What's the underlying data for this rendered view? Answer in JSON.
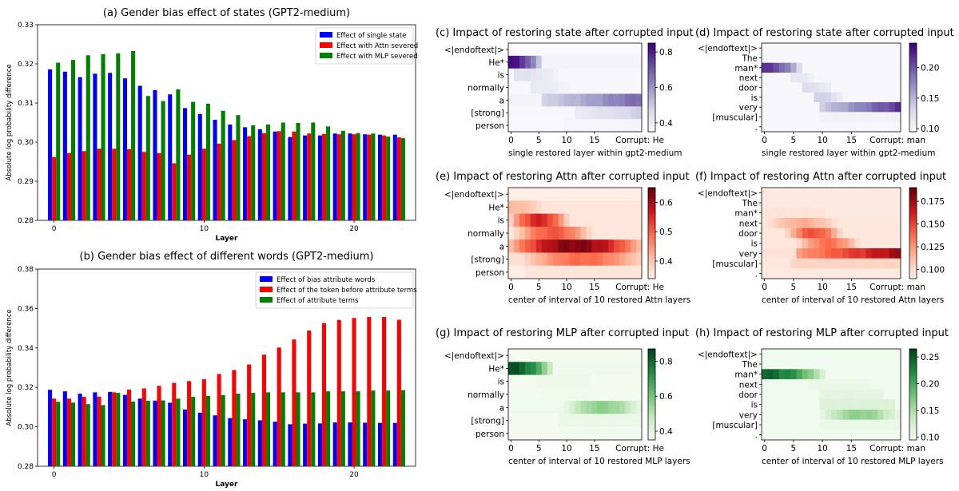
{
  "chart_data": [
    {
      "id": "a",
      "type": "bar",
      "title": "(a) Gender bias effect of states (GPT2-medium)",
      "xlabel": "Layer",
      "ylabel": "Absolute log probability difference",
      "ylim": [
        0.28,
        0.33
      ],
      "yticks": [
        "0.28",
        "0.29",
        "0.30",
        "0.31",
        "0.32",
        "0.33"
      ],
      "xticks": [
        "0",
        "10",
        "20"
      ],
      "x": [
        0,
        1,
        2,
        3,
        4,
        5,
        6,
        7,
        8,
        9,
        10,
        11,
        12,
        13,
        14,
        15,
        16,
        17,
        18,
        19,
        20,
        21,
        22,
        23
      ],
      "legend_position": "top-right",
      "series": [
        {
          "name": "Effect of single state",
          "color": "#0000ff",
          "values": [
            0.3186,
            0.318,
            0.3166,
            0.3175,
            0.3177,
            0.3163,
            0.3144,
            0.3133,
            0.3122,
            0.3087,
            0.3072,
            0.3057,
            0.3045,
            0.3038,
            0.3033,
            0.3027,
            0.3013,
            0.3017,
            0.3017,
            0.3022,
            0.3022,
            0.302,
            0.3019,
            0.3019
          ]
        },
        {
          "name": "Effect with Attn severed",
          "color": "#ff0000",
          "values": [
            0.2962,
            0.2972,
            0.2977,
            0.2983,
            0.2983,
            0.2982,
            0.2975,
            0.2972,
            0.2946,
            0.2968,
            0.2983,
            0.2996,
            0.3005,
            0.3015,
            0.3023,
            0.3028,
            0.3027,
            0.3022,
            0.3021,
            0.302,
            0.302,
            0.3019,
            0.3017,
            0.3012
          ]
        },
        {
          "name": "Effect with MLP severed",
          "color": "#008000",
          "values": [
            0.3203,
            0.321,
            0.3222,
            0.3225,
            0.3227,
            0.3233,
            0.3118,
            0.3105,
            0.3135,
            0.3103,
            0.3098,
            0.308,
            0.3069,
            0.3043,
            0.3045,
            0.305,
            0.3049,
            0.305,
            0.304,
            0.3029,
            0.3023,
            0.3022,
            0.3014,
            0.301
          ]
        }
      ]
    },
    {
      "id": "b",
      "type": "bar",
      "title": "(b) Gender bias effect of different words (GPT2-medium)",
      "xlabel": "Layer",
      "ylabel": "Absolute log probability difference",
      "ylim": [
        0.28,
        0.38
      ],
      "yticks": [
        "0.28",
        "0.30",
        "0.32",
        "0.34",
        "0.36",
        "0.38"
      ],
      "xticks": [
        "0",
        "10",
        "20"
      ],
      "x": [
        0,
        1,
        2,
        3,
        4,
        5,
        6,
        7,
        8,
        9,
        10,
        11,
        12,
        13,
        14,
        15,
        16,
        17,
        18,
        19,
        20,
        21,
        22,
        23
      ],
      "legend_position": "top-left",
      "series": [
        {
          "name": "Effect of bias attribute words",
          "color": "#0000ff",
          "values": [
            0.3188,
            0.318,
            0.3168,
            0.3175,
            0.3177,
            0.3162,
            0.3143,
            0.3133,
            0.3122,
            0.3088,
            0.3072,
            0.3058,
            0.3044,
            0.3038,
            0.3033,
            0.3026,
            0.3013,
            0.3016,
            0.3017,
            0.3022,
            0.3022,
            0.3021,
            0.302,
            0.302
          ]
        },
        {
          "name": "Effect of the token before attribute terms",
          "color": "#ff0000",
          "values": [
            0.3143,
            0.3143,
            0.3152,
            0.3153,
            0.3175,
            0.3189,
            0.3195,
            0.3208,
            0.3223,
            0.3232,
            0.3241,
            0.3268,
            0.3288,
            0.3316,
            0.3366,
            0.3402,
            0.3443,
            0.3488,
            0.3526,
            0.3542,
            0.3552,
            0.3557,
            0.3557,
            0.3543
          ]
        },
        {
          "name": "Effect of attribute terms",
          "color": "#008000",
          "values": [
            0.3127,
            0.3123,
            0.3115,
            0.311,
            0.3172,
            0.3128,
            0.3132,
            0.3134,
            0.3143,
            0.3152,
            0.3157,
            0.3161,
            0.3168,
            0.3172,
            0.3175,
            0.3175,
            0.3175,
            0.3175,
            0.318,
            0.318,
            0.318,
            0.3184,
            0.3184,
            0.3186
          ]
        }
      ]
    },
    {
      "id": "c",
      "type": "heatmap",
      "title": "(c) Impact of restoring state after corrupted input",
      "xlabel": "single restored layer within gpt2-medium",
      "corrupt_label": "Corrupt: He",
      "cmap": "Purples",
      "tokens": [
        "<|endoftext|>",
        "He*",
        "is",
        "normally",
        "a",
        "[strong]",
        "person"
      ],
      "xticks": [
        "0",
        "5",
        "10",
        "15"
      ],
      "cbar_range": [
        0.35,
        0.85
      ],
      "cbar_ticks": [
        "0.4",
        "0.6",
        "0.8"
      ],
      "rows": [
        {
          "base": 0.36,
          "peak": 0.36,
          "from": 0,
          "to": 0
        },
        {
          "base": 0.38,
          "peak": 0.84,
          "from": 0,
          "to": 6,
          "decay": true
        },
        {
          "base": 0.37,
          "peak": 0.45,
          "from": 1,
          "to": 9,
          "decay": true
        },
        {
          "base": 0.37,
          "peak": 0.42,
          "from": 4,
          "to": 11,
          "decay": true
        },
        {
          "base": 0.38,
          "peak": 0.7,
          "from": 6,
          "to": 23,
          "rise": true
        },
        {
          "base": 0.37,
          "peak": 0.5,
          "from": 12,
          "to": 23,
          "rise": true
        },
        {
          "base": 0.36,
          "peak": 0.39,
          "from": 10,
          "to": 23
        }
      ]
    },
    {
      "id": "d",
      "type": "heatmap",
      "title": "(d) Impact of restoring state after corrupted input",
      "xlabel": "single restored layer within gpt2-medium",
      "corrupt_label": "Corrupt: man",
      "cmap": "Purples",
      "tokens": [
        "<|endoftext|>",
        "The",
        "man*",
        "next",
        "door",
        "is",
        "very",
        "[muscular]",
        "."
      ],
      "xticks": [
        "0",
        "5",
        "10",
        "15"
      ],
      "cbar_range": [
        0.095,
        0.24
      ],
      "cbar_ticks": [
        "0.10",
        "0.15",
        "0.20"
      ],
      "rows": [
        {
          "base": 0.1,
          "peak": 0.1,
          "from": 0,
          "to": 0
        },
        {
          "base": 0.1,
          "peak": 0.1,
          "from": 0,
          "to": 0
        },
        {
          "base": 0.1,
          "peak": 0.22,
          "from": 0,
          "to": 7,
          "decay": true
        },
        {
          "base": 0.1,
          "peak": 0.12,
          "from": 5,
          "to": 9,
          "decay": true
        },
        {
          "base": 0.1,
          "peak": 0.13,
          "from": 7,
          "to": 12,
          "decay": true
        },
        {
          "base": 0.1,
          "peak": 0.14,
          "from": 9,
          "to": 14,
          "decay": true
        },
        {
          "base": 0.1,
          "peak": 0.22,
          "from": 10,
          "to": 23,
          "rise": true
        },
        {
          "base": 0.1,
          "peak": 0.11,
          "from": 10,
          "to": 23
        },
        {
          "base": 0.1,
          "peak": 0.1,
          "from": 0,
          "to": 0
        }
      ]
    },
    {
      "id": "e",
      "type": "heatmap",
      "title": "(e) Impact of restoring Attn after corrupted input",
      "xlabel": "center of interval of 10 restored Attn layers",
      "corrupt_label": "Corrupt: He",
      "cmap": "Reds",
      "tokens": [
        "<|endoftext|>",
        "He*",
        "is",
        "normally",
        "a",
        "[strong]",
        "person"
      ],
      "xticks": [
        "0",
        "5",
        "10",
        "15"
      ],
      "cbar_range": [
        0.34,
        0.65
      ],
      "cbar_ticks": [
        "0.4",
        "0.5",
        "0.6"
      ],
      "rows": [
        {
          "base": 0.35,
          "peak": 0.35,
          "from": 0,
          "to": 0
        },
        {
          "base": 0.36,
          "peak": 0.42,
          "from": 0,
          "to": 6,
          "decay": true
        },
        {
          "base": 0.36,
          "peak": 0.57,
          "from": 0,
          "to": 10,
          "hump": true
        },
        {
          "base": 0.36,
          "peak": 0.52,
          "from": 1,
          "to": 14,
          "hump": true
        },
        {
          "base": 0.38,
          "peak": 0.64,
          "from": 0,
          "to": 23,
          "hump": true
        },
        {
          "base": 0.37,
          "peak": 0.5,
          "from": 3,
          "to": 23,
          "hump": true
        },
        {
          "base": 0.35,
          "peak": 0.37,
          "from": 3,
          "to": 23
        }
      ]
    },
    {
      "id": "f",
      "type": "heatmap",
      "title": "(f) Impact of restoring Attn after corrupted input",
      "xlabel": "center of interval of 10 restored Attn layers",
      "corrupt_label": "Corrupt: man",
      "cmap": "Reds",
      "tokens": [
        "<|endoftext|>",
        "The",
        "man*",
        "next",
        "door",
        "is",
        "very",
        "[muscular]",
        "."
      ],
      "xticks": [
        "0",
        "5",
        "10",
        "15"
      ],
      "cbar_range": [
        0.09,
        0.19
      ],
      "cbar_ticks": [
        "0.100",
        "0.125",
        "0.150",
        "0.175"
      ],
      "rows": [
        {
          "base": 0.095,
          "peak": 0.095,
          "from": 0,
          "to": 0
        },
        {
          "base": 0.095,
          "peak": 0.095,
          "from": 0,
          "to": 0
        },
        {
          "base": 0.095,
          "peak": 0.1,
          "from": 0,
          "to": 10
        },
        {
          "base": 0.096,
          "peak": 0.12,
          "from": 1,
          "to": 12,
          "hump": true
        },
        {
          "base": 0.096,
          "peak": 0.15,
          "from": 4,
          "to": 13,
          "hump": true
        },
        {
          "base": 0.096,
          "peak": 0.14,
          "from": 6,
          "to": 16,
          "hump": true
        },
        {
          "base": 0.098,
          "peak": 0.18,
          "from": 6,
          "to": 23,
          "rise": true
        },
        {
          "base": 0.096,
          "peak": 0.11,
          "from": 5,
          "to": 23
        },
        {
          "base": 0.095,
          "peak": 0.095,
          "from": 0,
          "to": 0
        }
      ]
    },
    {
      "id": "g",
      "type": "heatmap",
      "title": "(g) Impact of restoring MLP after corrupted input",
      "xlabel": "center of interval of 10 restored MLP layers",
      "corrupt_label": "Corrupt: He",
      "cmap": "Greens",
      "tokens": [
        "<|endoftext|>",
        "He*",
        "is",
        "normally",
        "a",
        "[strong]",
        "person"
      ],
      "xticks": [
        "0",
        "5",
        "10",
        "15"
      ],
      "cbar_range": [
        0.35,
        0.87
      ],
      "cbar_ticks": [
        "0.4",
        "0.6",
        "0.8"
      ],
      "rows": [
        {
          "base": 0.36,
          "peak": 0.36,
          "from": 0,
          "to": 0
        },
        {
          "base": 0.37,
          "peak": 0.86,
          "from": 0,
          "to": 8,
          "decay": true
        },
        {
          "base": 0.36,
          "peak": 0.39,
          "from": 5,
          "to": 14
        },
        {
          "base": 0.36,
          "peak": 0.38,
          "from": 6,
          "to": 14
        },
        {
          "base": 0.37,
          "peak": 0.58,
          "from": 10,
          "to": 23,
          "hump": true
        },
        {
          "base": 0.36,
          "peak": 0.4,
          "from": 9,
          "to": 23
        },
        {
          "base": 0.36,
          "peak": 0.37,
          "from": 9,
          "to": 23
        }
      ]
    },
    {
      "id": "h",
      "type": "heatmap",
      "title": "(h) Impact of restoring MLP after corrupted input",
      "xlabel": "center of interval of 10 restored MLP layers",
      "corrupt_label": "Corrupt: man",
      "cmap": "Greens",
      "tokens": [
        "<|endoftext|>",
        "The",
        "man*",
        "next",
        "door",
        "is",
        "very",
        "[muscular]",
        "."
      ],
      "xticks": [
        "0",
        "5",
        "10",
        "15"
      ],
      "cbar_range": [
        0.095,
        0.265
      ],
      "cbar_ticks": [
        "0.10",
        "0.15",
        "0.20",
        "0.25"
      ],
      "rows": [
        {
          "base": 0.1,
          "peak": 0.1,
          "from": 0,
          "to": 0
        },
        {
          "base": 0.1,
          "peak": 0.1,
          "from": 0,
          "to": 0
        },
        {
          "base": 0.1,
          "peak": 0.25,
          "from": 0,
          "to": 11,
          "decay": true
        },
        {
          "base": 0.1,
          "peak": 0.11,
          "from": 8,
          "to": 18
        },
        {
          "base": 0.1,
          "peak": 0.12,
          "from": 10,
          "to": 20
        },
        {
          "base": 0.1,
          "peak": 0.13,
          "from": 10,
          "to": 22
        },
        {
          "base": 0.1,
          "peak": 0.17,
          "from": 10,
          "to": 23,
          "hump": true
        },
        {
          "base": 0.1,
          "peak": 0.11,
          "from": 10,
          "to": 23
        },
        {
          "base": 0.1,
          "peak": 0.1,
          "from": 0,
          "to": 0
        }
      ]
    }
  ]
}
